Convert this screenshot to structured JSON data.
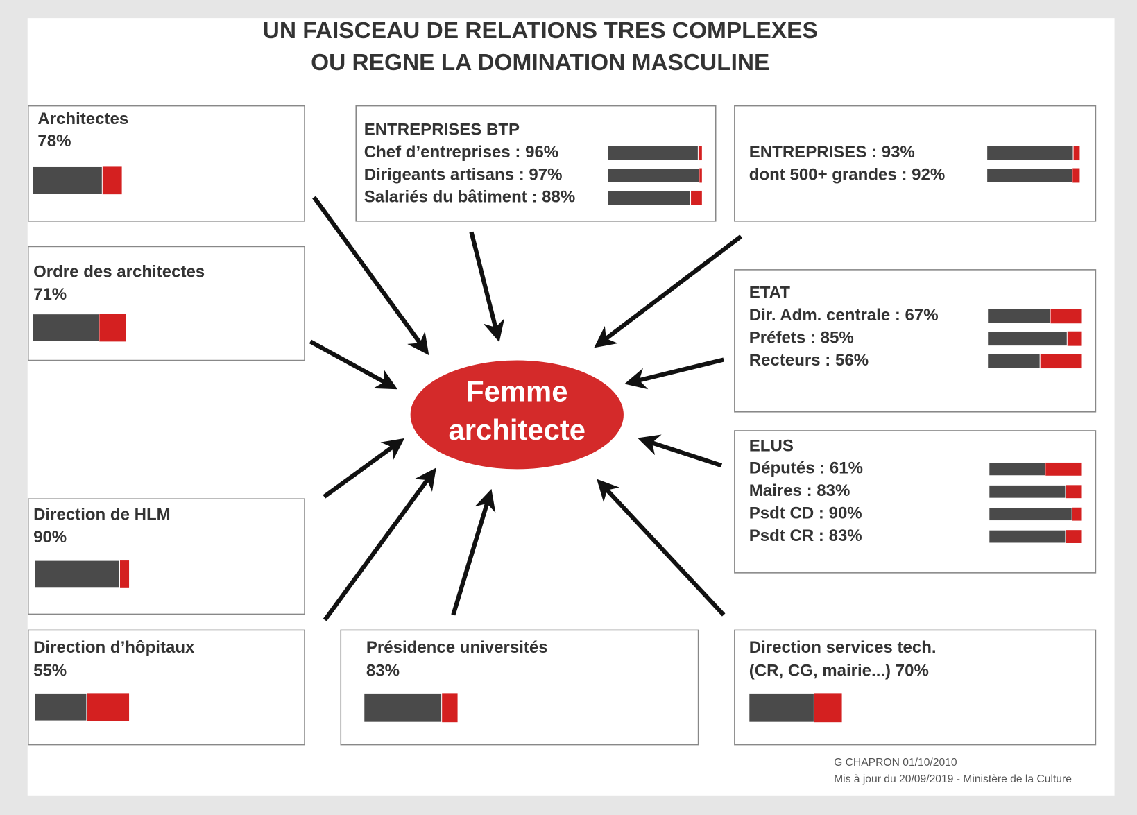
{
  "title": [
    "UN FAISCEAU DE RELATIONS TRES COMPLEXES",
    "OU REGNE LA DOMINATION MASCULINE"
  ],
  "center": [
    "Femme",
    "architecte"
  ],
  "boxes": [
    {
      "title": "Architectes",
      "items": [
        {
          "label": "78%",
          "value": 78
        }
      ]
    },
    {
      "title": "Ordre des architectes",
      "items": [
        {
          "label": "71%",
          "value": 71
        }
      ]
    },
    {
      "title": "Direction de HLM",
      "items": [
        {
          "label": "90%",
          "value": 90
        }
      ]
    },
    {
      "title": "Direction d’hôpitaux",
      "items": [
        {
          "label": "55%",
          "value": 55
        }
      ]
    },
    {
      "title": "ENTREPRISES BTP",
      "items": [
        {
          "label": "Chef d’entreprises : 96%",
          "value": 96
        },
        {
          "label": "Dirigeants artisans : 97%",
          "value": 97
        },
        {
          "label": "Salariés du bâtiment : 88%",
          "value": 88
        }
      ]
    },
    {
      "items": [
        {
          "label": "ENTREPRISES : 93%",
          "value": 93
        },
        {
          "label": "dont 500+ grandes : 92%",
          "value": 92
        }
      ]
    },
    {
      "title": "ETAT",
      "items": [
        {
          "label": "Dir. Adm. centrale : 67%",
          "value": 67
        },
        {
          "label": "Préfets : 85%",
          "value": 85
        },
        {
          "label": "Recteurs : 56%",
          "value": 56
        }
      ]
    },
    {
      "title": "ELUS",
      "items": [
        {
          "label": "Députés : 61%",
          "value": 61
        },
        {
          "label": "Maires : 83%",
          "value": 83
        },
        {
          "label": "Psdt CD : 90%",
          "value": 90
        },
        {
          "label": "Psdt CR : 83%",
          "value": 83
        }
      ]
    },
    {
      "title": "Présidence universités",
      "items": [
        {
          "label": "83%",
          "value": 83
        }
      ]
    },
    {
      "title": "Direction services tech.",
      "items": [
        {
          "label": "(CR, CG, mairie...) 70%",
          "value": 70
        }
      ]
    }
  ],
  "footer": [
    "G CHAPRON 01/10/2010",
    "Mis à jour du 20/09/2019 - Ministère de la Culture"
  ]
}
